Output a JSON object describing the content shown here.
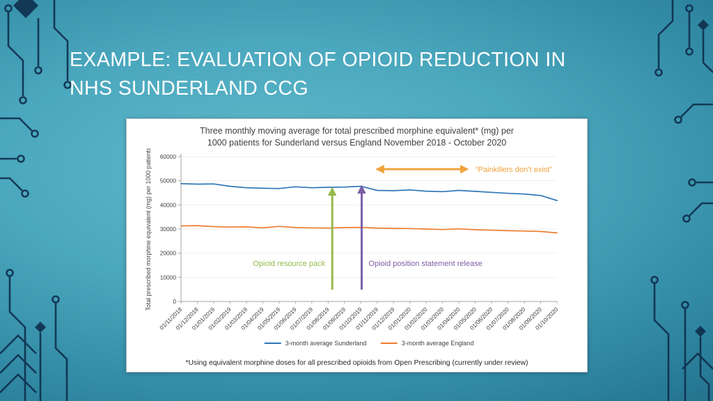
{
  "slide": {
    "title_lines": [
      "EXAMPLE: EVALUATION OF OPIOID REDUCTION IN",
      "NHS SUNDERLAND CCG"
    ]
  },
  "chart_data": {
    "type": "line",
    "title": "Three monthly moving average for total prescribed morphine equivalent* (mg) per 1000 patients for Sunderland versus England November 2018 - October 2020",
    "title_lines": [
      "Three monthly moving average for total prescribed morphine equivalent* (mg) per",
      "1000 patients for Sunderland versus England November 2018 - October 2020"
    ],
    "ylabel": "Total prescribed morphine equivalent (mg) per 1000 patients",
    "xlabel": "",
    "ylim": [
      0,
      60000
    ],
    "yticks": [
      0,
      10000,
      20000,
      30000,
      40000,
      50000,
      60000
    ],
    "grid": "faint-horizontal",
    "legend_position": "bottom",
    "categories": [
      "01/11/2018",
      "01/12/2018",
      "01/01/2019",
      "01/02/2019",
      "01/03/2019",
      "01/04/2019",
      "01/05/2019",
      "01/06/2019",
      "01/07/2019",
      "01/08/2019",
      "01/09/2019",
      "01/10/2019",
      "01/11/2019",
      "01/12/2019",
      "01/01/2020",
      "01/02/2020",
      "01/03/2020",
      "01/04/2020",
      "01/05/2020",
      "01/06/2020",
      "01/07/2020",
      "01/08/2020",
      "01/09/2020",
      "01/10/2020"
    ],
    "series": [
      {
        "name": "3-month average Sunderland",
        "color": "#2E75B6",
        "values": [
          48800,
          48600,
          48700,
          47700,
          47100,
          46900,
          46800,
          47500,
          47100,
          47300,
          47400,
          47700,
          46000,
          45900,
          46200,
          45700,
          45500,
          46000,
          45600,
          45200,
          44800,
          44500,
          43900,
          41800
        ]
      },
      {
        "name": "3-month average England",
        "color": "#ED7D31",
        "values": [
          31300,
          31400,
          31000,
          30800,
          30900,
          30500,
          31100,
          30600,
          30500,
          30400,
          30600,
          30700,
          30400,
          30300,
          30200,
          30000,
          29800,
          30100,
          29700,
          29500,
          29300,
          29200,
          29000,
          28400
        ]
      }
    ],
    "annotations": [
      {
        "type": "double-arrow",
        "label": "“Painkillers don’t exist”",
        "color": "#F0A23C",
        "y": 54800,
        "x_from": 12,
        "x_to": 17.5
      },
      {
        "type": "vertical-arrow",
        "label": "Opioid resource pack",
        "color": "#95B94B",
        "x_index": 9.25,
        "y_from": 4900,
        "y_to": 46700,
        "label_side": "left",
        "label_y": 14700
      },
      {
        "type": "vertical-arrow",
        "label": "Opioid position statement release",
        "color": "#7B5EA7",
        "x_index": 11.05,
        "y_from": 4900,
        "y_to": 47600,
        "label_side": "right",
        "label_y": 14700
      }
    ],
    "footnote": "*Using equivalent morphine doses for all prescribed opioids from Open Prescribing (currently under review)"
  }
}
